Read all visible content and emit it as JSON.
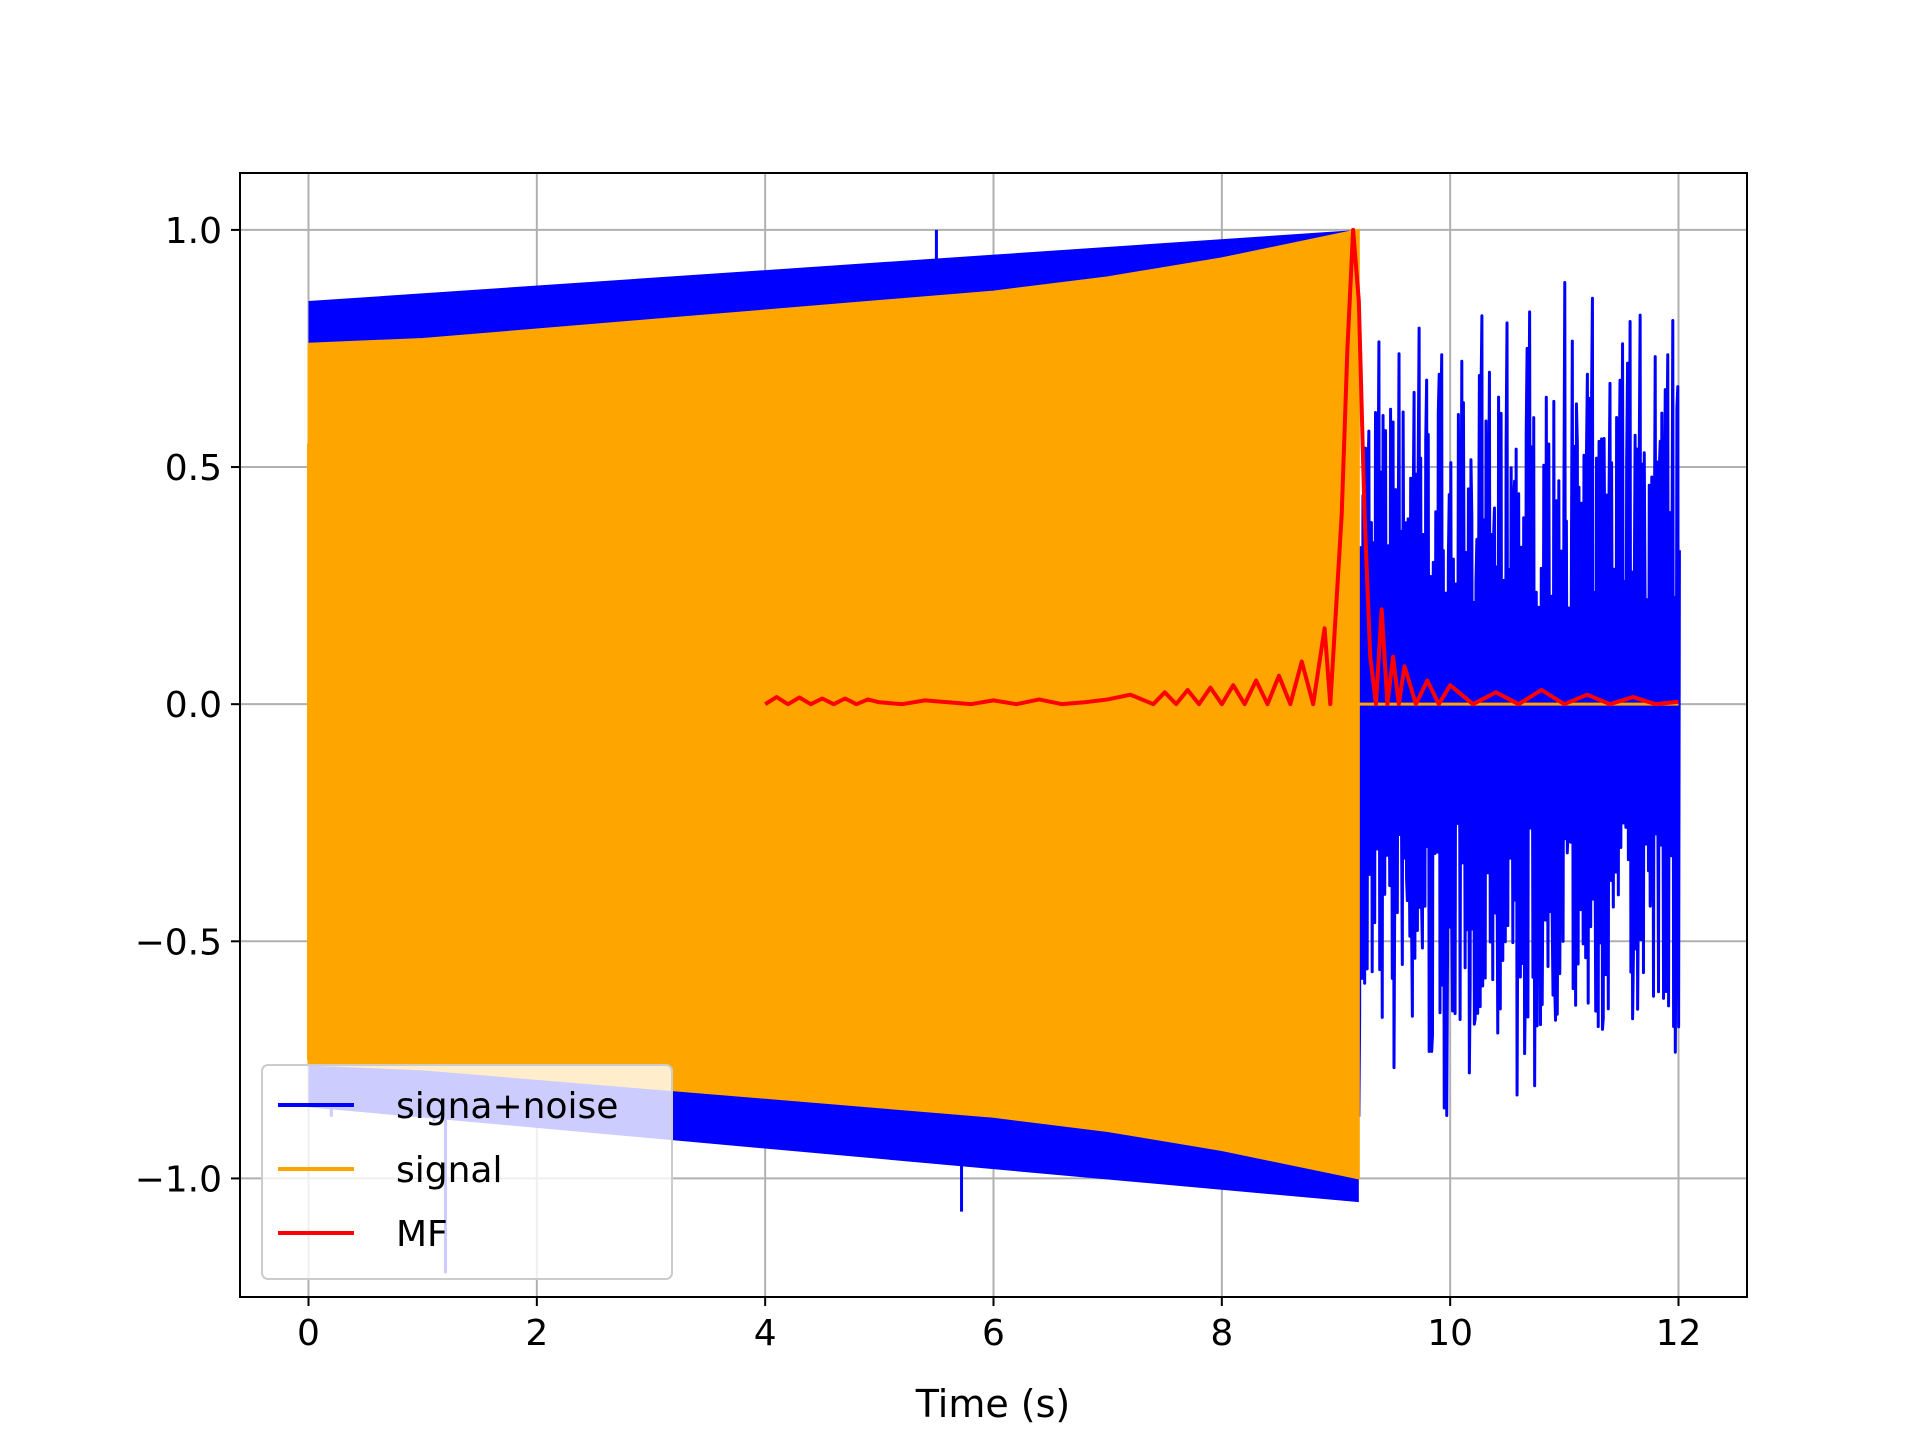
{
  "chart_data": {
    "type": "line",
    "title": "",
    "xlabel": "Time (s)",
    "ylabel": "",
    "xlim": [
      -0.6,
      12.6
    ],
    "ylim": [
      -1.25,
      1.12
    ],
    "xticks": [
      0,
      2,
      4,
      6,
      8,
      10,
      12
    ],
    "xtick_labels": [
      "0",
      "2",
      "4",
      "6",
      "8",
      "10",
      "12"
    ],
    "yticks": [
      -1.0,
      -0.5,
      0.0,
      0.5,
      1.0
    ],
    "ytick_labels": [
      "−1.0",
      "−0.5",
      "0.0",
      "0.5",
      "1.0"
    ],
    "grid": true,
    "legend_position": "lower-left",
    "series": [
      {
        "name": "signa+noise",
        "color": "#0000ff",
        "kind": "noisy-chirp",
        "x_range": [
          0,
          12
        ],
        "envelope": {
          "x": [
            0,
            9.2
          ],
          "lower": [
            -0.85,
            -1.05
          ],
          "upper": [
            0.85,
            1.0
          ]
        },
        "noise_only_range": {
          "x": [
            9.2,
            12
          ],
          "min": -0.87,
          "max": 0.9
        },
        "spikes": [
          {
            "x": 0.2,
            "y": -0.87
          },
          {
            "x": 0.65,
            "y": -0.83
          },
          {
            "x": 1.1,
            "y": -0.88
          },
          {
            "x": 1.2,
            "y": -1.2
          },
          {
            "x": 1.5,
            "y": 0.78
          },
          {
            "x": 2.3,
            "y": 0.85
          },
          {
            "x": 2.63,
            "y": 0.88
          },
          {
            "x": 3.5,
            "y": -0.85
          },
          {
            "x": 5.5,
            "y": 1.0
          },
          {
            "x": 5.72,
            "y": 0.88
          },
          {
            "x": 5.72,
            "y": -1.07
          }
        ]
      },
      {
        "name": "signal",
        "color": "#ffa500",
        "kind": "chirp-envelope",
        "x": [
          0,
          1,
          2,
          3,
          4,
          5,
          6,
          7,
          8,
          9,
          9.2
        ],
        "upper": [
          0.76,
          0.77,
          0.79,
          0.81,
          0.83,
          0.85,
          0.87,
          0.9,
          0.94,
          0.99,
          1.0
        ],
        "lower": [
          -0.76,
          -0.77,
          -0.79,
          -0.81,
          -0.83,
          -0.85,
          -0.87,
          -0.9,
          -0.94,
          -0.99,
          -1.0
        ],
        "tail": {
          "x": [
            9.2,
            12
          ],
          "y": 0.0
        }
      },
      {
        "name": "MF",
        "color": "#ff0000",
        "kind": "line",
        "x": [
          4.0,
          4.1,
          4.2,
          4.3,
          4.4,
          4.5,
          4.6,
          4.7,
          4.8,
          4.9,
          5.0,
          5.2,
          5.4,
          5.6,
          5.8,
          6.0,
          6.2,
          6.4,
          6.6,
          6.8,
          7.0,
          7.2,
          7.4,
          7.5,
          7.6,
          7.7,
          7.8,
          7.9,
          8.0,
          8.1,
          8.2,
          8.3,
          8.4,
          8.5,
          8.6,
          8.7,
          8.8,
          8.9,
          8.95,
          9.0,
          9.05,
          9.1,
          9.15,
          9.2,
          9.25,
          9.3,
          9.35,
          9.4,
          9.45,
          9.5,
          9.55,
          9.6,
          9.7,
          9.8,
          9.9,
          10.0,
          10.2,
          10.4,
          10.6,
          10.8,
          11.0,
          11.2,
          11.4,
          11.6,
          11.8,
          12.0
        ],
        "y": [
          0.0,
          0.015,
          0.0,
          0.014,
          0.0,
          0.012,
          0.0,
          0.012,
          0.0,
          0.01,
          0.004,
          0.0,
          0.008,
          0.004,
          0.0,
          0.008,
          0.0,
          0.01,
          0.0,
          0.004,
          0.01,
          0.02,
          0.0,
          0.025,
          0.0,
          0.03,
          0.0,
          0.035,
          0.0,
          0.04,
          0.0,
          0.05,
          0.0,
          0.06,
          0.0,
          0.09,
          0.0,
          0.16,
          0.0,
          0.2,
          0.4,
          0.75,
          1.0,
          0.85,
          0.4,
          0.1,
          0.0,
          0.2,
          0.0,
          0.1,
          0.0,
          0.08,
          0.0,
          0.05,
          0.0,
          0.04,
          0.0,
          0.025,
          0.0,
          0.03,
          0.0,
          0.02,
          0.0,
          0.015,
          0.0,
          0.005
        ]
      }
    ]
  }
}
